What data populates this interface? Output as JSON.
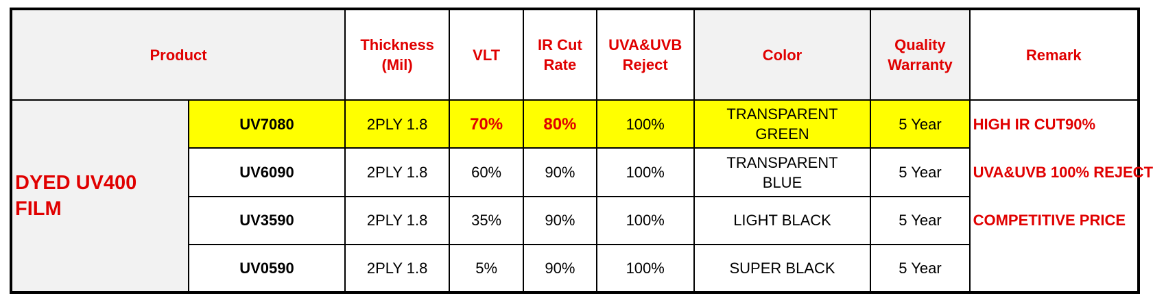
{
  "headers": {
    "product": "Product",
    "thickness": [
      "Thickness",
      "(Mil)"
    ],
    "vlt": "VLT",
    "ir_cut": [
      "IR Cut",
      "Rate"
    ],
    "uv_reject": [
      "UVA&UVB",
      "Reject"
    ],
    "color": "Color",
    "warranty": [
      "Quality",
      "Warranty"
    ],
    "remark": "Remark"
  },
  "group": [
    "DYED UV400",
    "FILM"
  ],
  "rows": [
    {
      "model": "UV7080",
      "thickness": "2PLY 1.8",
      "vlt": "70%",
      "ir": "80%",
      "uv": "100%",
      "color": [
        "TRANSPARENT",
        "GREEN"
      ],
      "warranty": "5 Year"
    },
    {
      "model": "UV6090",
      "thickness": "2PLY 1.8",
      "vlt": "60%",
      "ir": "90%",
      "uv": "100%",
      "color": [
        "TRANSPARENT",
        "BLUE"
      ],
      "warranty": "5 Year"
    },
    {
      "model": "UV3590",
      "thickness": "2PLY 1.8",
      "vlt": "35%",
      "ir": "90%",
      "uv": "100%",
      "color": [
        "LIGHT BLACK"
      ],
      "warranty": "5 Year"
    },
    {
      "model": "UV0590",
      "thickness": "2PLY 1.8",
      "vlt": "5%",
      "ir": "90%",
      "uv": "100%",
      "color": [
        "SUPER BLACK"
      ],
      "warranty": "5 Year"
    }
  ],
  "remarks": [
    "HIGH IR CUT90%",
    "UVA&UVB 100% REJECT",
    "COMPETITIVE PRICE"
  ],
  "colors": {
    "header_text": "#e00000",
    "highlight": "#ffff00",
    "header_bg": "#f2f2f2"
  }
}
